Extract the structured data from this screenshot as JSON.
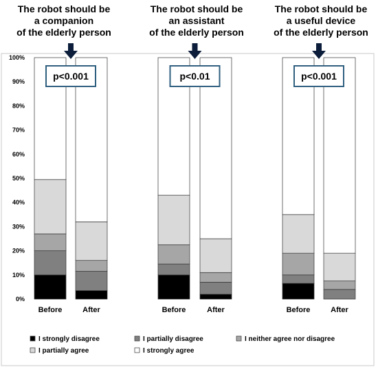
{
  "chart_data": {
    "type": "bar",
    "stacked": true,
    "percent": true,
    "ylim": [
      0,
      100
    ],
    "y_ticks": [
      "0%",
      "10%",
      "20%",
      "30%",
      "40%",
      "50%",
      "60%",
      "70%",
      "80%",
      "90%",
      "100%"
    ],
    "categories": [
      "Before",
      "After"
    ],
    "series": [
      {
        "name": "I strongly disagree",
        "color": "#000000"
      },
      {
        "name": "I partially disagree",
        "color": "#808080"
      },
      {
        "name": "I neither agree nor disagree",
        "color": "#a6a6a6"
      },
      {
        "name": "I partially agree",
        "color": "#d9d9d9"
      },
      {
        "name": "I strongly agree",
        "color": "#ffffff"
      }
    ],
    "panels": [
      {
        "title": [
          "The robot should be",
          "a companion",
          "of the elderly person"
        ],
        "p_value": "p<0.001",
        "values": {
          "Before": [
            10,
            10,
            7,
            22.5,
            50.5
          ],
          "After": [
            3.5,
            8,
            4.5,
            16,
            68
          ]
        }
      },
      {
        "title": [
          "The robot should be",
          "an assistant",
          "of the elderly person"
        ],
        "p_value": "p<0.01",
        "values": {
          "Before": [
            10,
            4.5,
            8,
            20.5,
            57
          ],
          "After": [
            2,
            5,
            4,
            14,
            75
          ]
        }
      },
      {
        "title": [
          "The robot should be",
          "a useful device",
          "of the elderly person"
        ],
        "p_value": "p<0.001",
        "values": {
          "Before": [
            6.5,
            3.5,
            9,
            16,
            65
          ],
          "After": [
            0,
            4,
            3.5,
            11.5,
            81
          ]
        }
      }
    ],
    "legend_position": "bottom",
    "grid": false
  }
}
